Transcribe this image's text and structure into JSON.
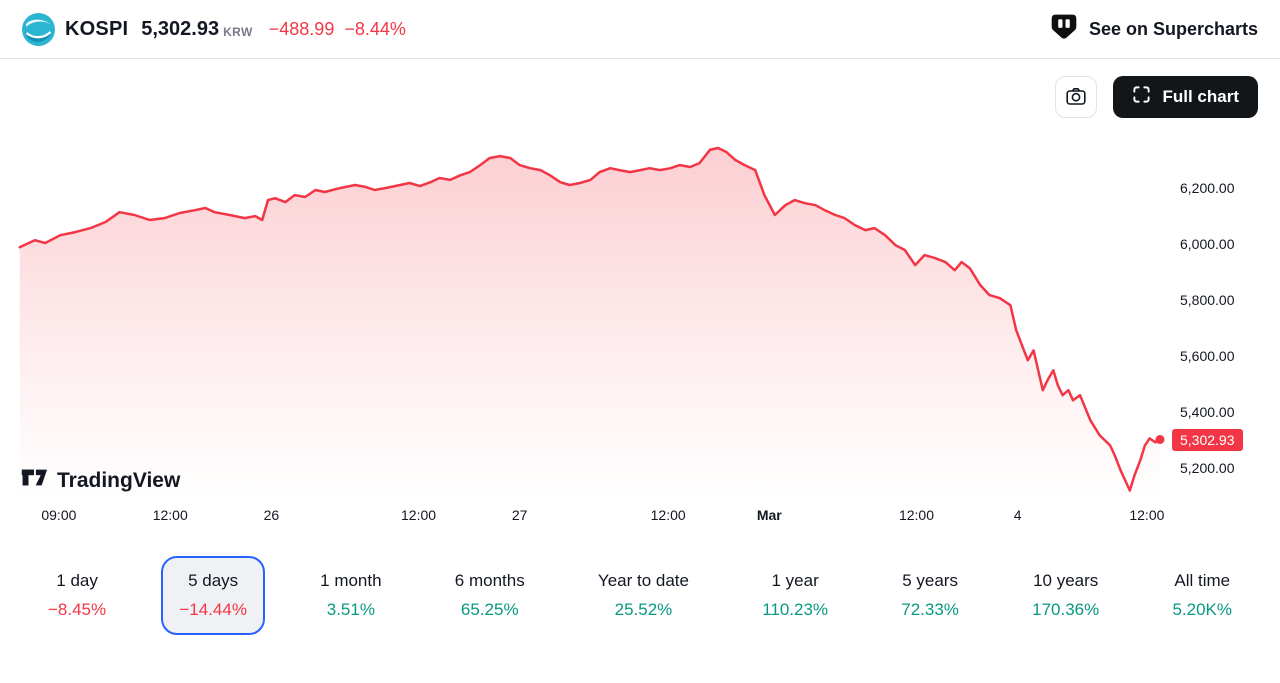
{
  "header": {
    "symbol": "KOSPI",
    "price": "5,302.93",
    "currency": "KRW",
    "change": "−488.99",
    "change_percent": "−8.44%",
    "superchart_link": "See on Supercharts"
  },
  "toolbar": {
    "full_chart_label": "Full chart"
  },
  "watermark_text": "TradingView",
  "colors": {
    "down": "#f23645",
    "up": "#089981",
    "accent": "#2962ff",
    "badge": "#f23645"
  },
  "chart_data": {
    "type": "area",
    "title": "KOSPI 5 days price chart",
    "line_color": "#f23645",
    "grid": false,
    "legend_position": "none",
    "last_price": 5302.93,
    "last_price_label": "5,302.93",
    "price_range": [
      5080,
      6400
    ],
    "y_ticks": [
      {
        "value": 6200,
        "label": "6,200.00"
      },
      {
        "value": 6000,
        "label": "6,000.00"
      },
      {
        "value": 5800,
        "label": "5,800.00"
      },
      {
        "value": 5600,
        "label": "5,600.00"
      },
      {
        "value": 5400,
        "label": "5,400.00"
      },
      {
        "value": 5200,
        "label": "5,200.00"
      }
    ],
    "x_ticks": [
      {
        "label": "09:00",
        "x": 0.046,
        "bold": false
      },
      {
        "label": "12:00",
        "x": 0.133,
        "bold": false
      },
      {
        "label": "26",
        "x": 0.212,
        "bold": false
      },
      {
        "label": "12:00",
        "x": 0.327,
        "bold": false
      },
      {
        "label": "27",
        "x": 0.406,
        "bold": false
      },
      {
        "label": "12:00",
        "x": 0.522,
        "bold": false
      },
      {
        "label": "Mar",
        "x": 0.601,
        "bold": true
      },
      {
        "label": "12:00",
        "x": 0.716,
        "bold": false
      },
      {
        "label": "4",
        "x": 0.795,
        "bold": false
      },
      {
        "label": "12:00",
        "x": 0.896,
        "bold": false
      }
    ],
    "points": [
      [
        0.017,
        5989
      ],
      [
        0.03,
        6014
      ],
      [
        0.039,
        6004
      ],
      [
        0.052,
        6032
      ],
      [
        0.065,
        6043
      ],
      [
        0.078,
        6057
      ],
      [
        0.091,
        6079
      ],
      [
        0.103,
        6114
      ],
      [
        0.116,
        6104
      ],
      [
        0.129,
        6086
      ],
      [
        0.142,
        6093
      ],
      [
        0.155,
        6111
      ],
      [
        0.168,
        6121
      ],
      [
        0.177,
        6129
      ],
      [
        0.185,
        6114
      ],
      [
        0.198,
        6104
      ],
      [
        0.211,
        6093
      ],
      [
        0.22,
        6100
      ],
      [
        0.226,
        6086
      ],
      [
        0.231,
        6157
      ],
      [
        0.237,
        6164
      ],
      [
        0.246,
        6150
      ],
      [
        0.254,
        6175
      ],
      [
        0.263,
        6168
      ],
      [
        0.272,
        6193
      ],
      [
        0.28,
        6186
      ],
      [
        0.293,
        6200
      ],
      [
        0.306,
        6211
      ],
      [
        0.315,
        6204
      ],
      [
        0.323,
        6193
      ],
      [
        0.332,
        6200
      ],
      [
        0.345,
        6211
      ],
      [
        0.353,
        6218
      ],
      [
        0.362,
        6207
      ],
      [
        0.371,
        6221
      ],
      [
        0.379,
        6236
      ],
      [
        0.388,
        6229
      ],
      [
        0.397,
        6246
      ],
      [
        0.405,
        6257
      ],
      [
        0.414,
        6282
      ],
      [
        0.422,
        6307
      ],
      [
        0.431,
        6314
      ],
      [
        0.44,
        6307
      ],
      [
        0.448,
        6282
      ],
      [
        0.457,
        6271
      ],
      [
        0.466,
        6264
      ],
      [
        0.474,
        6246
      ],
      [
        0.483,
        6221
      ],
      [
        0.491,
        6211
      ],
      [
        0.5,
        6218
      ],
      [
        0.509,
        6229
      ],
      [
        0.517,
        6257
      ],
      [
        0.526,
        6271
      ],
      [
        0.534,
        6264
      ],
      [
        0.543,
        6257
      ],
      [
        0.552,
        6264
      ],
      [
        0.56,
        6271
      ],
      [
        0.569,
        6264
      ],
      [
        0.578,
        6271
      ],
      [
        0.586,
        6282
      ],
      [
        0.595,
        6275
      ],
      [
        0.603,
        6289
      ],
      [
        0.612,
        6336
      ],
      [
        0.619,
        6343
      ],
      [
        0.626,
        6329
      ],
      [
        0.634,
        6300
      ],
      [
        0.642,
        6282
      ],
      [
        0.651,
        6264
      ],
      [
        0.659,
        6175
      ],
      [
        0.668,
        6104
      ],
      [
        0.677,
        6139
      ],
      [
        0.685,
        6157
      ],
      [
        0.694,
        6146
      ],
      [
        0.703,
        6139
      ],
      [
        0.711,
        6121
      ],
      [
        0.72,
        6104
      ],
      [
        0.728,
        6093
      ],
      [
        0.737,
        6068
      ],
      [
        0.746,
        6050
      ],
      [
        0.754,
        6057
      ],
      [
        0.763,
        6032
      ],
      [
        0.772,
        5996
      ],
      [
        0.78,
        5979
      ],
      [
        0.789,
        5925
      ],
      [
        0.797,
        5961
      ],
      [
        0.806,
        5950
      ],
      [
        0.815,
        5936
      ],
      [
        0.823,
        5907
      ],
      [
        0.829,
        5936
      ],
      [
        0.836,
        5914
      ],
      [
        0.845,
        5854
      ],
      [
        0.853,
        5818
      ],
      [
        0.862,
        5807
      ],
      [
        0.871,
        5782
      ],
      [
        0.876,
        5693
      ],
      [
        0.881,
        5639
      ],
      [
        0.886,
        5586
      ],
      [
        0.891,
        5621
      ],
      [
        0.895,
        5550
      ],
      [
        0.899,
        5479
      ],
      [
        0.903,
        5514
      ],
      [
        0.908,
        5550
      ],
      [
        0.912,
        5496
      ],
      [
        0.916,
        5461
      ],
      [
        0.921,
        5479
      ],
      [
        0.925,
        5443
      ],
      [
        0.931,
        5461
      ],
      [
        0.94,
        5371
      ],
      [
        0.948,
        5318
      ],
      [
        0.957,
        5282
      ],
      [
        0.961,
        5246
      ],
      [
        0.966,
        5193
      ],
      [
        0.97,
        5157
      ],
      [
        0.974,
        5121
      ],
      [
        0.978,
        5175
      ],
      [
        0.983,
        5229
      ],
      [
        0.987,
        5282
      ],
      [
        0.991,
        5307
      ],
      [
        0.996,
        5293
      ],
      [
        1.0,
        5302.93
      ]
    ]
  },
  "ranges": [
    {
      "label": "1 day",
      "change": "−8.45%",
      "direction": "down",
      "selected": false
    },
    {
      "label": "5 days",
      "change": "−14.44%",
      "direction": "down",
      "selected": true
    },
    {
      "label": "1 month",
      "change": "3.51%",
      "direction": "up",
      "selected": false
    },
    {
      "label": "6 months",
      "change": "65.25%",
      "direction": "up",
      "selected": false
    },
    {
      "label": "Year to date",
      "change": "25.52%",
      "direction": "up",
      "selected": false
    },
    {
      "label": "1 year",
      "change": "110.23%",
      "direction": "up",
      "selected": false
    },
    {
      "label": "5 years",
      "change": "72.33%",
      "direction": "up",
      "selected": false
    },
    {
      "label": "10 years",
      "change": "170.36%",
      "direction": "up",
      "selected": false
    },
    {
      "label": "All time",
      "change": "5.20K%",
      "direction": "up",
      "selected": false
    }
  ]
}
